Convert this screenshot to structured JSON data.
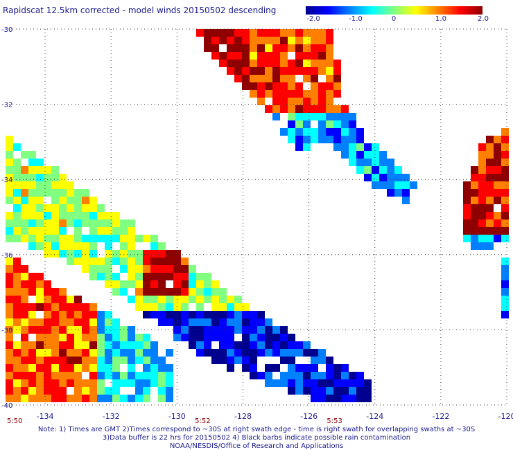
{
  "title": "Rapidscat 12.5km corrected - model winds 20150502 descending",
  "colorbar": {
    "ticks": [
      "-2.0",
      "-1.0",
      "0",
      "1.0",
      "2.0"
    ],
    "tick_values": [
      -2.0,
      -1.0,
      0,
      1.0,
      2.0
    ],
    "colors": [
      "#00008f",
      "#0000ff",
      "#0080ff",
      "#00ffff",
      "#80ff80",
      "#ffff00",
      "#ff8000",
      "#ff0000",
      "#8f0000"
    ]
  },
  "map": {
    "lon_range": [
      -135.2,
      -120
    ],
    "lat_range": [
      -40,
      -30
    ],
    "lon_ticks": [
      "-134",
      "-132",
      "-130",
      "-128",
      "-126",
      "-124",
      "-122",
      "-120"
    ],
    "lon_tick_values": [
      -134,
      -132,
      -130,
      -128,
      -126,
      -124,
      -122,
      -120
    ],
    "lat_ticks": [
      "-30",
      "-32",
      "-34",
      "-36",
      "-38",
      "-40"
    ],
    "lat_tick_values": [
      -30,
      -32,
      -34,
      -36,
      -38,
      -40
    ],
    "grid": "dotted",
    "times": [
      {
        "label": "5:50",
        "lon": -135.2
      },
      {
        "label": "5:52",
        "lon": -129.5
      },
      {
        "label": "5:53",
        "lon": -125.5
      }
    ]
  },
  "swaths": [
    {
      "name": "swath-northeast",
      "lon": [
        -127.6,
        -124.4
      ],
      "lat_top": -30,
      "lat_bottom": -34.6,
      "left_slope": 0.55
    },
    {
      "name": "swath-west-upper",
      "lon": [
        -135.2,
        -127.5
      ],
      "lat_top": -33.4,
      "lat_bottom": -39.8
    },
    {
      "name": "swath-west-lower",
      "lon": [
        -135.2,
        -129.6
      ],
      "lat_top": -36.2,
      "lat_bottom": -40
    },
    {
      "name": "swath-east-edge",
      "lon": [
        -121.5,
        -120
      ],
      "lat_top": -33.2,
      "lat_bottom": -36.2
    }
  ],
  "footer": {
    "line1": "Note: 1) Times are GMT 2)Times correspond to ~30S at right swath edge - time is right swath for overlapping swaths at ~30S",
    "line2": "3)Data buffer is 22 hrs for 20150502 4) Black barbs indicate possible rain contamination",
    "line3": "NOAA/NESDIS/Office of Research and Applications"
  }
}
